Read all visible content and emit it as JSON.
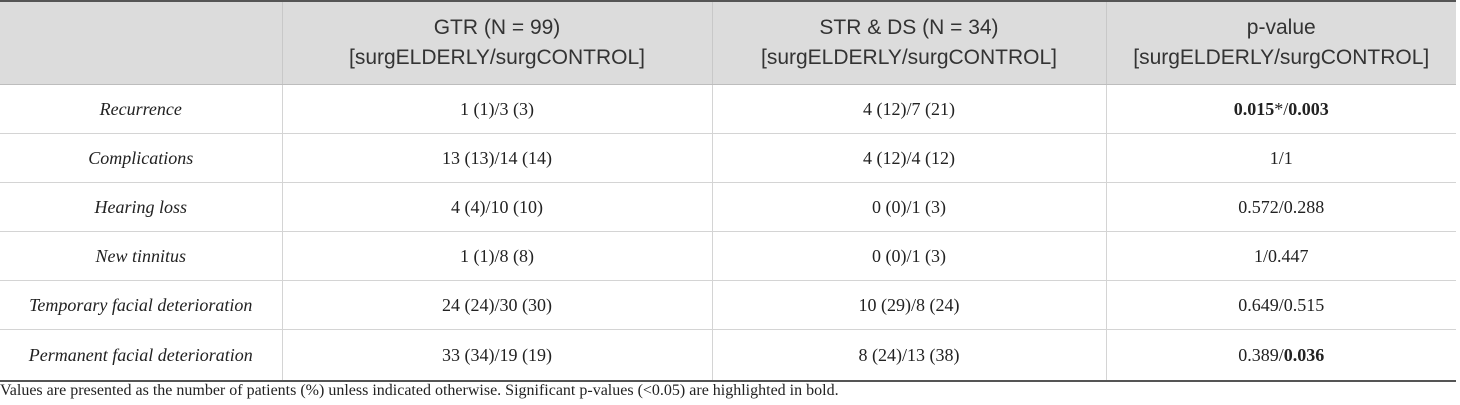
{
  "header": {
    "col0": "",
    "col1_line1": "GTR (N = 99)",
    "col1_line2": "[surgELDERLY/surgCONTROL]",
    "col2_line1": "STR & DS (N = 34)",
    "col2_line2": "[surgELDERLY/surgCONTROL]",
    "col3_line1": "p-value",
    "col3_line2": "[surgELDERLY/surgCONTROL]"
  },
  "rows": [
    {
      "label": "Recurrence",
      "gtr": "1 (1)/3 (3)",
      "str": "4 (12)/7 (21)",
      "p_a": "0.015",
      "p_b": "*/",
      "p_c": "0.003"
    },
    {
      "label": "Complications",
      "gtr": "13 (13)/14 (14)",
      "str": "4 (12)/4 (12)",
      "p": "1/1"
    },
    {
      "label": "Hearing loss",
      "gtr": "4 (4)/10 (10)",
      "str": "0 (0)/1 (3)",
      "p": "0.572/0.288"
    },
    {
      "label": "New tinnitus",
      "gtr": "1 (1)/8 (8)",
      "str": "0 (0)/1 (3)",
      "p": "1/0.447"
    },
    {
      "label": "Temporary facial deterioration",
      "gtr": "24 (24)/30 (30)",
      "str": "10 (29)/8 (24)",
      "p": "0.649/0.515"
    },
    {
      "label": "Permanent facial deterioration",
      "gtr": "33 (34)/19 (19)",
      "str": "8 (24)/13 (38)",
      "p_a": "0.389/",
      "p_b": "0.036"
    }
  ],
  "footnote": "Values are presented as the number of patients (%) unless indicated otherwise. Significant p-values (<0.05) are highlighted in bold."
}
